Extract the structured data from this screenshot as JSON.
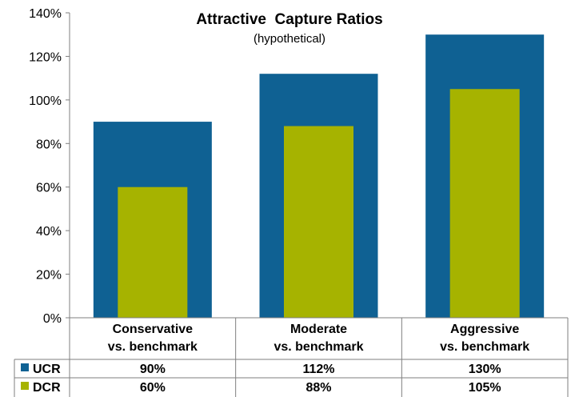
{
  "chart_data": {
    "type": "bar",
    "title": "Attractive  Capture Ratios",
    "subtitle": "(hypothetical)",
    "categories": [
      [
        "Conservative",
        "vs. benchmark"
      ],
      [
        "Moderate",
        "vs. benchmark"
      ],
      [
        "Aggressive",
        "vs. benchmark"
      ]
    ],
    "series": [
      {
        "name": "UCR",
        "color": "#0f6193",
        "values": [
          90,
          112,
          130
        ],
        "labels": [
          "90%",
          "112%",
          "130%"
        ]
      },
      {
        "name": "DCR",
        "color": "#a6b300",
        "values": [
          60,
          88,
          105
        ],
        "labels": [
          "60%",
          "88%",
          "105%"
        ]
      }
    ],
    "ylim": [
      0,
      140
    ],
    "yticks": [
      "0%",
      "20%",
      "40%",
      "60%",
      "80%",
      "100%",
      "120%",
      "140%"
    ],
    "grid": false,
    "legend": "data-table"
  }
}
